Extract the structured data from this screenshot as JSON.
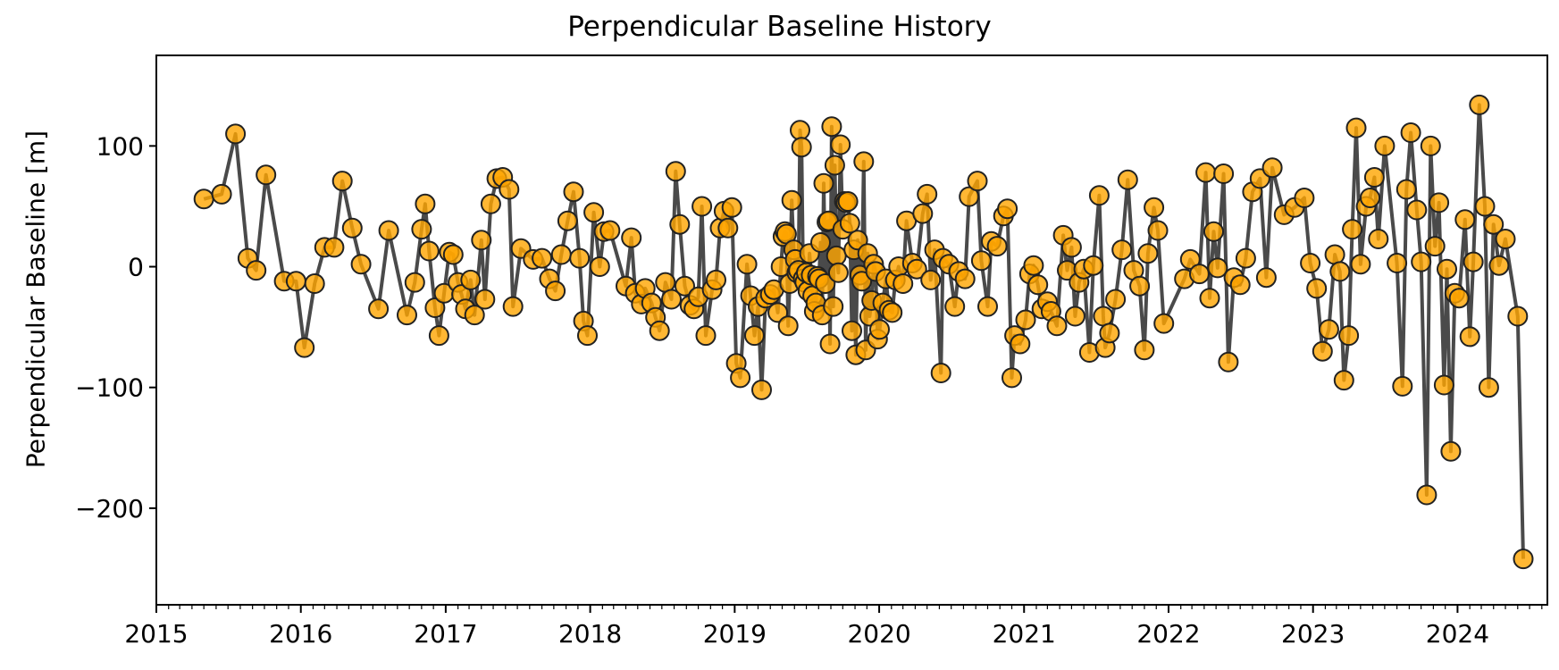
{
  "chart_data": {
    "type": "scatter",
    "title": "Perpendicular Baseline History",
    "xlabel": "",
    "ylabel": "Perpendicular Baseline [m]",
    "xlim": [
      "2015-01-01",
      "2024-08-15"
    ],
    "ylim": [
      -280,
      175
    ],
    "xticks": [
      "2015",
      "2016",
      "2017",
      "2018",
      "2019",
      "2020",
      "2021",
      "2022",
      "2023",
      "2024"
    ],
    "yticks": [
      100,
      0,
      -100,
      -200
    ],
    "ytick_labels": [
      "100",
      "0",
      "−100",
      "−200"
    ],
    "grid": false,
    "marker_color": "#ffa500",
    "line_color": "#404040",
    "series": [
      {
        "connect": true,
        "points": [
          [
            "2015-05-01",
            56
          ],
          [
            "2015-06-15",
            60
          ],
          [
            "2015-07-20",
            110
          ],
          [
            "2015-08-20",
            7
          ],
          [
            "2015-09-10",
            -3
          ],
          [
            "2015-10-05",
            76
          ],
          [
            "2015-11-20",
            -12
          ],
          [
            "2015-12-20",
            -12
          ],
          [
            "2016-01-10",
            -67
          ],
          [
            "2016-02-05",
            -14
          ],
          [
            "2016-03-01",
            16
          ],
          [
            "2016-03-25",
            16
          ],
          [
            "2016-04-15",
            71
          ],
          [
            "2016-05-10",
            32
          ],
          [
            "2016-06-01",
            2
          ],
          [
            "2016-07-15",
            -35
          ],
          [
            "2016-08-10",
            30
          ],
          [
            "2016-09-25",
            -40
          ],
          [
            "2016-10-15",
            -13
          ],
          [
            "2016-11-01",
            31
          ],
          [
            "2016-11-10",
            52
          ],
          [
            "2016-11-20",
            13
          ],
          [
            "2016-12-05",
            -34
          ],
          [
            "2016-12-15",
            -57
          ],
          [
            "2016-12-28",
            -22
          ],
          [
            "2017-01-10",
            12
          ],
          [
            "2017-01-20",
            10
          ],
          [
            "2017-02-01",
            -13
          ],
          [
            "2017-02-10",
            -23
          ],
          [
            "2017-02-20",
            -35
          ],
          [
            "2017-03-05",
            -11
          ],
          [
            "2017-03-15",
            -40
          ],
          [
            "2017-04-01",
            22
          ],
          [
            "2017-04-10",
            -27
          ],
          [
            "2017-04-25",
            52
          ],
          [
            "2017-05-10",
            73
          ],
          [
            "2017-05-25",
            74
          ],
          [
            "2017-06-10",
            64
          ],
          [
            "2017-06-20",
            -33
          ],
          [
            "2017-07-10",
            15
          ],
          [
            "2017-08-10",
            6
          ],
          [
            "2017-09-01",
            7
          ],
          [
            "2017-09-20",
            -10
          ],
          [
            "2017-10-05",
            -20
          ],
          [
            "2017-10-20",
            10
          ],
          [
            "2017-11-05",
            38
          ],
          [
            "2017-11-20",
            62
          ],
          [
            "2017-12-05",
            7
          ],
          [
            "2017-12-15",
            -45
          ],
          [
            "2017-12-25",
            -57
          ],
          [
            "2018-01-10",
            45
          ],
          [
            "2018-01-25",
            0
          ],
          [
            "2018-02-05",
            29
          ],
          [
            "2018-02-20",
            30
          ],
          [
            "2018-04-01",
            -16
          ],
          [
            "2018-04-15",
            24
          ],
          [
            "2018-04-25",
            -22
          ],
          [
            "2018-05-10",
            -31
          ],
          [
            "2018-05-20",
            -18
          ],
          [
            "2018-06-05",
            -30
          ],
          [
            "2018-06-15",
            -42
          ],
          [
            "2018-06-25",
            -53
          ],
          [
            "2018-07-10",
            -13
          ],
          [
            "2018-07-25",
            -27
          ],
          [
            "2018-08-05",
            79
          ],
          [
            "2018-08-15",
            35
          ],
          [
            "2018-08-28",
            -16
          ],
          [
            "2018-09-10",
            -32
          ],
          [
            "2018-09-20",
            -35
          ],
          [
            "2018-10-01",
            -25
          ],
          [
            "2018-10-10",
            50
          ],
          [
            "2018-10-20",
            -57
          ],
          [
            "2018-11-05",
            -19
          ],
          [
            "2018-11-15",
            -11
          ],
          [
            "2018-11-25",
            32
          ],
          [
            "2018-12-05",
            46
          ],
          [
            "2018-12-15",
            32
          ],
          [
            "2018-12-25",
            49
          ],
          [
            "2019-01-05",
            -80
          ],
          [
            "2019-01-15",
            -92
          ],
          [
            "2019-02-01",
            2
          ],
          [
            "2019-02-10",
            -24
          ],
          [
            "2019-02-20",
            -57
          ],
          [
            "2019-03-01",
            -33
          ],
          [
            "2019-03-10",
            -102
          ],
          [
            "2019-03-20",
            -26
          ],
          [
            "2019-04-01",
            -23
          ],
          [
            "2019-04-10",
            -19
          ],
          [
            "2019-04-20",
            -38
          ],
          [
            "2019-04-28",
            0
          ],
          [
            "2019-05-03",
            25
          ],
          [
            "2019-05-08",
            29
          ],
          [
            "2019-05-12",
            27
          ],
          [
            "2019-05-16",
            -49
          ],
          [
            "2019-05-20",
            -14
          ],
          [
            "2019-05-25",
            55
          ],
          [
            "2019-05-30",
            14
          ],
          [
            "2019-06-03",
            6
          ],
          [
            "2019-06-07",
            -5
          ],
          [
            "2019-06-11",
            -3
          ],
          [
            "2019-06-15",
            113
          ],
          [
            "2019-06-19",
            99
          ],
          [
            "2019-06-23",
            -10
          ],
          [
            "2019-06-27",
            -13
          ],
          [
            "2019-07-01",
            -5
          ],
          [
            "2019-07-05",
            -20
          ],
          [
            "2019-07-09",
            11
          ],
          [
            "2019-07-13",
            -7
          ],
          [
            "2019-07-17",
            -24
          ],
          [
            "2019-07-21",
            -37
          ],
          [
            "2019-07-25",
            -30
          ],
          [
            "2019-07-29",
            -8
          ],
          [
            "2019-08-02",
            -10
          ],
          [
            "2019-08-06",
            20
          ],
          [
            "2019-08-10",
            -40
          ],
          [
            "2019-08-14",
            69
          ],
          [
            "2019-08-18",
            -14
          ],
          [
            "2019-08-22",
            37
          ],
          [
            "2019-08-26",
            38
          ],
          [
            "2019-08-30",
            -64
          ],
          [
            "2019-09-03",
            116
          ],
          [
            "2019-09-07",
            -33
          ],
          [
            "2019-09-11",
            84
          ],
          [
            "2019-09-15",
            9
          ],
          [
            "2019-09-20",
            -5
          ],
          [
            "2019-09-25",
            101
          ],
          [
            "2019-10-01",
            31
          ],
          [
            "2019-10-05",
            54
          ],
          [
            "2019-10-09",
            53
          ],
          [
            "2019-10-14",
            54
          ],
          [
            "2019-10-19",
            36
          ],
          [
            "2019-10-24",
            -53
          ],
          [
            "2019-10-29",
            14
          ],
          [
            "2019-11-03",
            -73
          ],
          [
            "2019-11-08",
            22
          ],
          [
            "2019-11-13",
            -7
          ],
          [
            "2019-11-18",
            -12
          ],
          [
            "2019-11-23",
            87
          ],
          [
            "2019-11-28",
            -69
          ],
          [
            "2019-12-03",
            11
          ],
          [
            "2019-12-08",
            -41
          ],
          [
            "2019-12-13",
            -28
          ],
          [
            "2019-12-18",
            2
          ],
          [
            "2019-12-23",
            -4
          ],
          [
            "2019-12-28",
            -60
          ],
          [
            "2020-01-02",
            -52
          ],
          [
            "2020-01-10",
            -30
          ],
          [
            "2020-01-18",
            -10
          ],
          [
            "2020-01-26",
            -36
          ],
          [
            "2020-02-03",
            -38
          ],
          [
            "2020-02-11",
            -11
          ],
          [
            "2020-02-19",
            0
          ],
          [
            "2020-03-01",
            -14
          ],
          [
            "2020-03-10",
            38
          ],
          [
            "2020-03-25",
            3
          ],
          [
            "2020-04-05",
            -2
          ],
          [
            "2020-04-20",
            44
          ],
          [
            "2020-05-01",
            60
          ],
          [
            "2020-05-10",
            -11
          ],
          [
            "2020-05-20",
            14
          ],
          [
            "2020-06-05",
            -88
          ],
          [
            "2020-06-10",
            7
          ],
          [
            "2020-06-25",
            2
          ],
          [
            "2020-07-10",
            -33
          ],
          [
            "2020-07-20",
            -4
          ],
          [
            "2020-08-05",
            -10
          ],
          [
            "2020-08-15",
            58
          ],
          [
            "2020-09-05",
            71
          ],
          [
            "2020-09-15",
            5
          ],
          [
            "2020-10-01",
            -33
          ],
          [
            "2020-10-10",
            21
          ],
          [
            "2020-10-25",
            17
          ],
          [
            "2020-11-10",
            42
          ],
          [
            "2020-11-20",
            48
          ],
          [
            "2020-12-01",
            -92
          ],
          [
            "2020-12-08",
            -57
          ],
          [
            "2020-12-22",
            -64
          ],
          [
            "2021-01-05",
            -44
          ],
          [
            "2021-01-15",
            -6
          ],
          [
            "2021-01-25",
            1
          ],
          [
            "2021-02-05",
            -15
          ],
          [
            "2021-02-15",
            -35
          ],
          [
            "2021-03-01",
            -29
          ],
          [
            "2021-03-10",
            -37
          ],
          [
            "2021-03-25",
            -49
          ],
          [
            "2021-04-10",
            26
          ],
          [
            "2021-04-20",
            -3
          ],
          [
            "2021-05-01",
            16
          ],
          [
            "2021-05-10",
            -41
          ],
          [
            "2021-05-20",
            -13
          ],
          [
            "2021-06-01",
            -2
          ],
          [
            "2021-06-15",
            -71
          ],
          [
            "2021-06-25",
            1
          ],
          [
            "2021-07-10",
            59
          ],
          [
            "2021-07-20",
            -41
          ],
          [
            "2021-07-25",
            -67
          ],
          [
            "2021-08-05",
            -55
          ],
          [
            "2021-08-20",
            -27
          ],
          [
            "2021-09-05",
            14
          ],
          [
            "2021-09-20",
            72
          ],
          [
            "2021-10-05",
            -3
          ],
          [
            "2021-10-20",
            -16
          ],
          [
            "2021-11-01",
            -69
          ],
          [
            "2021-11-10",
            11
          ],
          [
            "2021-11-25",
            49
          ],
          [
            "2021-12-05",
            30
          ],
          [
            "2021-12-20",
            -47
          ],
          [
            "2022-02-10",
            -10
          ],
          [
            "2022-02-25",
            6
          ],
          [
            "2022-03-20",
            -6
          ],
          [
            "2022-04-05",
            78
          ],
          [
            "2022-04-15",
            -26
          ],
          [
            "2022-04-25",
            29
          ],
          [
            "2022-05-05",
            -1
          ],
          [
            "2022-05-20",
            77
          ],
          [
            "2022-06-01",
            -79
          ],
          [
            "2022-06-15",
            -9
          ],
          [
            "2022-07-01",
            -15
          ],
          [
            "2022-07-15",
            7
          ],
          [
            "2022-08-01",
            62
          ],
          [
            "2022-08-20",
            73
          ],
          [
            "2022-09-05",
            -9
          ],
          [
            "2022-09-20",
            82
          ],
          [
            "2022-10-20",
            43
          ],
          [
            "2022-11-15",
            49
          ],
          [
            "2022-12-10",
            57
          ],
          [
            "2022-12-25",
            3
          ],
          [
            "2023-01-10",
            -18
          ],
          [
            "2023-01-25",
            -70
          ],
          [
            "2023-02-10",
            -52
          ],
          [
            "2023-02-25",
            10
          ],
          [
            "2023-03-10",
            -4
          ],
          [
            "2023-03-20",
            -94
          ],
          [
            "2023-04-01",
            -57
          ],
          [
            "2023-04-10",
            31
          ],
          [
            "2023-04-20",
            115
          ],
          [
            "2023-05-01",
            2
          ],
          [
            "2023-05-15",
            50
          ],
          [
            "2023-05-25",
            57
          ],
          [
            "2023-06-05",
            74
          ],
          [
            "2023-06-15",
            23
          ],
          [
            "2023-07-01",
            100
          ],
          [
            "2023-08-01",
            3
          ],
          [
            "2023-08-15",
            -99
          ],
          [
            "2023-08-25",
            64
          ],
          [
            "2023-09-05",
            111
          ],
          [
            "2023-09-20",
            47
          ],
          [
            "2023-10-01",
            4
          ],
          [
            "2023-10-15",
            -189
          ],
          [
            "2023-10-25",
            100
          ],
          [
            "2023-11-05",
            17
          ],
          [
            "2023-11-15",
            53
          ],
          [
            "2023-11-28",
            -98
          ],
          [
            "2023-12-05",
            -2
          ],
          [
            "2023-12-15",
            -153
          ],
          [
            "2023-12-25",
            -22
          ],
          [
            "2024-01-05",
            -26
          ],
          [
            "2024-01-20",
            39
          ],
          [
            "2024-02-01",
            -58
          ],
          [
            "2024-02-10",
            4
          ],
          [
            "2024-02-25",
            134
          ],
          [
            "2024-03-10",
            50
          ],
          [
            "2024-03-20",
            -100
          ],
          [
            "2024-04-01",
            35
          ],
          [
            "2024-04-15",
            1
          ],
          [
            "2024-05-01",
            23
          ],
          [
            "2024-06-01",
            -41
          ],
          [
            "2024-06-15",
            -242
          ]
        ]
      }
    ]
  }
}
